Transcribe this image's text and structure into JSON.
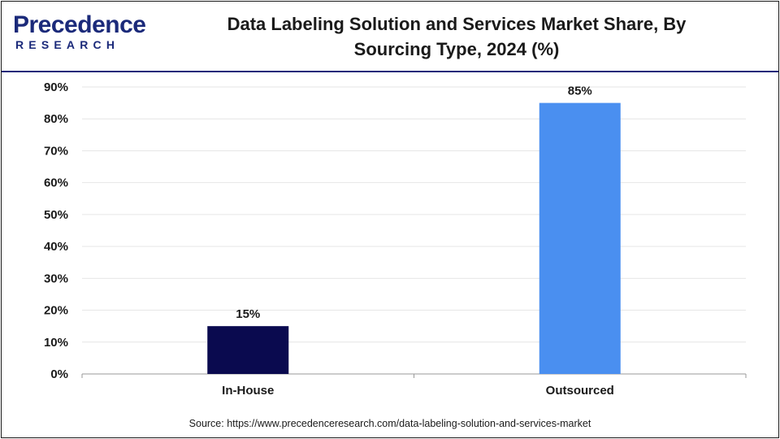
{
  "brand": {
    "name": "Precedence",
    "sub": "RESEARCH",
    "color": "#1b2a7a"
  },
  "header": {
    "title_line1": "Data Labeling Solution and Services Market Share, By",
    "title_line2": "Sourcing Type, 2024 (%)"
  },
  "chart_data": {
    "type": "bar",
    "title": "Data Labeling Solution and Services Market Share, By Sourcing Type, 2024 (%)",
    "categories": [
      "In-House",
      "Outsourced"
    ],
    "values": [
      15,
      85
    ],
    "data_labels": [
      "15%",
      "85%"
    ],
    "colors": [
      "#0a0a4f",
      "#4a8ff0"
    ],
    "ylim": [
      0,
      90
    ],
    "yticks": [
      "0%",
      "10%",
      "20%",
      "30%",
      "40%",
      "50%",
      "60%",
      "70%",
      "80%",
      "90%"
    ],
    "grid": true
  },
  "footer": {
    "source": "Source: https://www.precedenceresearch.com/data-labeling-solution-and-services-market"
  }
}
